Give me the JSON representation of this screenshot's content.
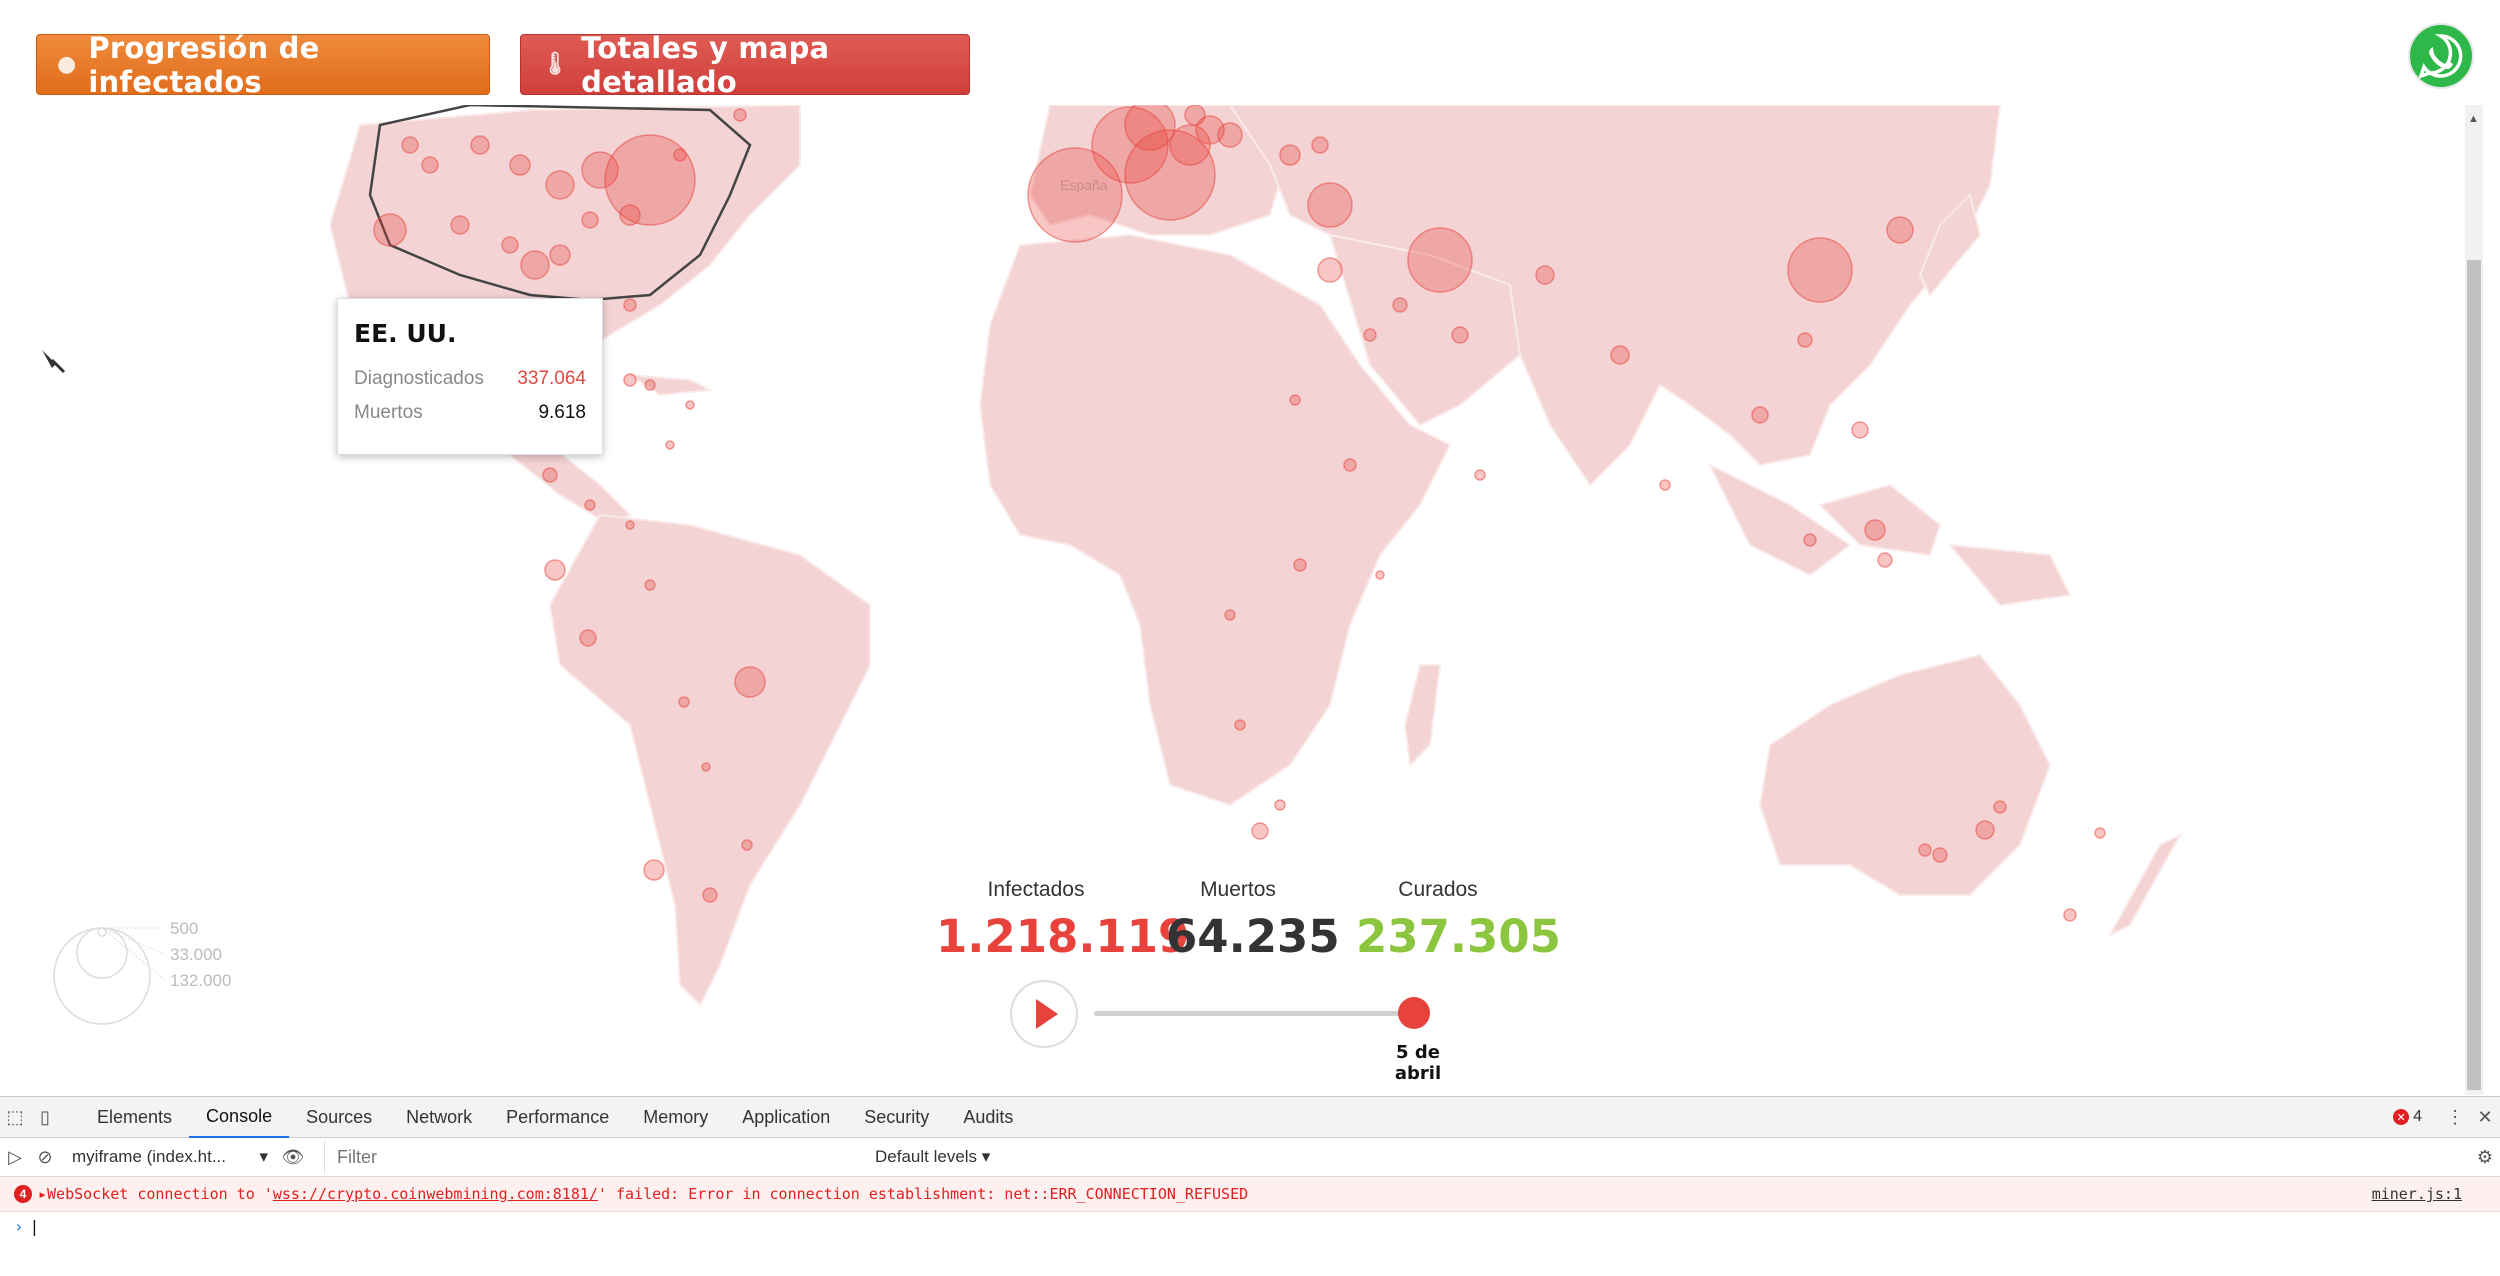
{
  "buttons": {
    "progression": "Progresión de infectados",
    "totals": "Totales y mapa detallado"
  },
  "map": {
    "label_spain": "España"
  },
  "tooltip": {
    "title": "EE. UU.",
    "diagnosed_label": "Diagnosticados",
    "diagnosed_value": "337.064",
    "deaths_label": "Muertos",
    "deaths_value": "9.618"
  },
  "legend": {
    "values": [
      "500",
      "33.000",
      "132.000"
    ]
  },
  "stats": {
    "infected_label": "Infectados",
    "infected_value": "1.218.119",
    "deaths_label": "Muertos",
    "deaths_value": "64.235",
    "cured_label": "Curados",
    "cured_value": "237.305"
  },
  "timeline": {
    "progress": 1.0,
    "date_line1": "5 de",
    "date_line2": "abril"
  },
  "colors": {
    "infected": "#e8423c",
    "deaths": "#333333",
    "cured": "#8cc63f",
    "land": "#f3d3d3",
    "bubble": "#e8423c"
  },
  "devtools": {
    "tabs": [
      "Elements",
      "Console",
      "Sources",
      "Network",
      "Performance",
      "Memory",
      "Application",
      "Security",
      "Audits"
    ],
    "active_tab": "Console",
    "error_count": "4",
    "context": "myiframe (index.ht...",
    "filter_placeholder": "Filter",
    "levels": "Default levels ▾",
    "error_badge": "4",
    "error_message_pre": "WebSocket connection to '",
    "error_url": "wss://crypto.coinwebmining.com:8181/",
    "error_message_post": "' failed: Error in connection establishment: net::ERR_CONNECTION_REFUSED",
    "error_source": "miner.js:1"
  }
}
